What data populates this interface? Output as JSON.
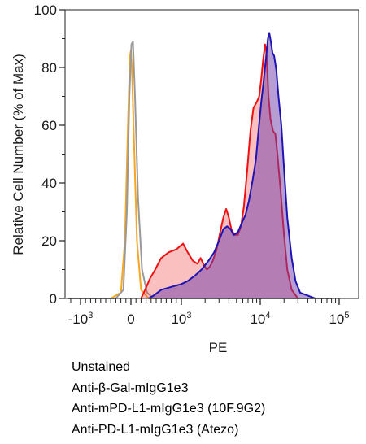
{
  "chart_data": {
    "type": "area",
    "xlabel": "PE",
    "ylabel": "Relative Cell Number (% of Max)",
    "ylim": [
      0,
      100
    ],
    "y_ticks": [
      0,
      20,
      40,
      60,
      80,
      100
    ],
    "x_scale": "biexponential",
    "x_ticks": [
      {
        "value": -1000,
        "base": "-10",
        "exp": "3"
      },
      {
        "value": 0,
        "base": "0",
        "exp": ""
      },
      {
        "value": 1000,
        "base": "10",
        "exp": "3"
      },
      {
        "value": 10000,
        "base": "10",
        "exp": "4"
      },
      {
        "value": 100000,
        "base": "10",
        "exp": "5"
      }
    ],
    "grid": false,
    "legend_position": "below",
    "series": [
      {
        "name": "Unstained",
        "color": "#f5a623",
        "fill": false,
        "points": [
          [
            -2500,
            0
          ],
          [
            -400,
            0
          ],
          [
            -200,
            2
          ],
          [
            -120,
            20
          ],
          [
            -60,
            60
          ],
          [
            -20,
            84
          ],
          [
            0,
            86
          ],
          [
            20,
            80
          ],
          [
            60,
            55
          ],
          [
            120,
            20
          ],
          [
            200,
            3
          ],
          [
            350,
            0
          ],
          [
            80000,
            0
          ]
        ]
      },
      {
        "name": "Anti-β-Gal-mIgG1e3",
        "color": "#999999",
        "fill": false,
        "points": [
          [
            -2500,
            0
          ],
          [
            -300,
            0
          ],
          [
            -150,
            3
          ],
          [
            -80,
            30
          ],
          [
            -30,
            70
          ],
          [
            10,
            88
          ],
          [
            40,
            89
          ],
          [
            80,
            70
          ],
          [
            140,
            35
          ],
          [
            220,
            10
          ],
          [
            320,
            2
          ],
          [
            450,
            0
          ],
          [
            80000,
            0
          ]
        ]
      },
      {
        "name": "Anti-mPD-L1-mIgG1e3 (10F.9G2)",
        "color": "#ee1111",
        "fill": true,
        "fill_color": "rgba(240,60,60,0.32)",
        "points": [
          [
            200,
            0
          ],
          [
            280,
            3
          ],
          [
            380,
            7
          ],
          [
            480,
            10
          ],
          [
            600,
            14
          ],
          [
            750,
            16
          ],
          [
            900,
            17
          ],
          [
            1050,
            19
          ],
          [
            1200,
            16
          ],
          [
            1400,
            13
          ],
          [
            1600,
            12
          ],
          [
            1750,
            14
          ],
          [
            1900,
            12
          ],
          [
            2100,
            10
          ],
          [
            2300,
            11
          ],
          [
            2500,
            13
          ],
          [
            2800,
            17
          ],
          [
            3100,
            23
          ],
          [
            3400,
            28
          ],
          [
            3700,
            31
          ],
          [
            4000,
            28
          ],
          [
            4300,
            24
          ],
          [
            4700,
            22
          ],
          [
            5200,
            22
          ],
          [
            5700,
            25
          ],
          [
            6200,
            32
          ],
          [
            6800,
            44
          ],
          [
            7500,
            58
          ],
          [
            8200,
            66
          ],
          [
            9000,
            68
          ],
          [
            9700,
            70
          ],
          [
            10300,
            76
          ],
          [
            10900,
            83
          ],
          [
            11500,
            88
          ],
          [
            12000,
            85
          ],
          [
            12700,
            70
          ],
          [
            13500,
            62
          ],
          [
            14500,
            58
          ],
          [
            15500,
            57
          ],
          [
            16500,
            50
          ],
          [
            18000,
            38
          ],
          [
            20000,
            22
          ],
          [
            22000,
            10
          ],
          [
            25000,
            3
          ],
          [
            30000,
            0
          ]
        ]
      },
      {
        "name": "Anti-PD-L1-mIgG1e3 (Atezo)",
        "color": "#1e14b4",
        "fill": true,
        "fill_color": "rgba(110,60,170,0.50)",
        "points": [
          [
            350,
            0
          ],
          [
            450,
            1
          ],
          [
            600,
            3
          ],
          [
            800,
            4
          ],
          [
            1000,
            5
          ],
          [
            1200,
            6
          ],
          [
            1500,
            8
          ],
          [
            1800,
            10
          ],
          [
            2200,
            13
          ],
          [
            2600,
            16
          ],
          [
            3000,
            20
          ],
          [
            3400,
            24
          ],
          [
            3800,
            25
          ],
          [
            4200,
            24
          ],
          [
            4600,
            22
          ],
          [
            5200,
            23
          ],
          [
            5800,
            26
          ],
          [
            6500,
            29
          ],
          [
            7200,
            34
          ],
          [
            8000,
            41
          ],
          [
            8800,
            48
          ],
          [
            9500,
            58
          ],
          [
            10300,
            68
          ],
          [
            11000,
            75
          ],
          [
            11800,
            83
          ],
          [
            12500,
            90
          ],
          [
            13000,
            92
          ],
          [
            13600,
            89
          ],
          [
            14300,
            85
          ],
          [
            15000,
            84
          ],
          [
            16000,
            79
          ],
          [
            17000,
            70
          ],
          [
            18500,
            60
          ],
          [
            20000,
            45
          ],
          [
            22000,
            28
          ],
          [
            25000,
            14
          ],
          [
            28000,
            6
          ],
          [
            32000,
            2
          ],
          [
            40000,
            1
          ],
          [
            50000,
            0
          ]
        ]
      }
    ]
  }
}
